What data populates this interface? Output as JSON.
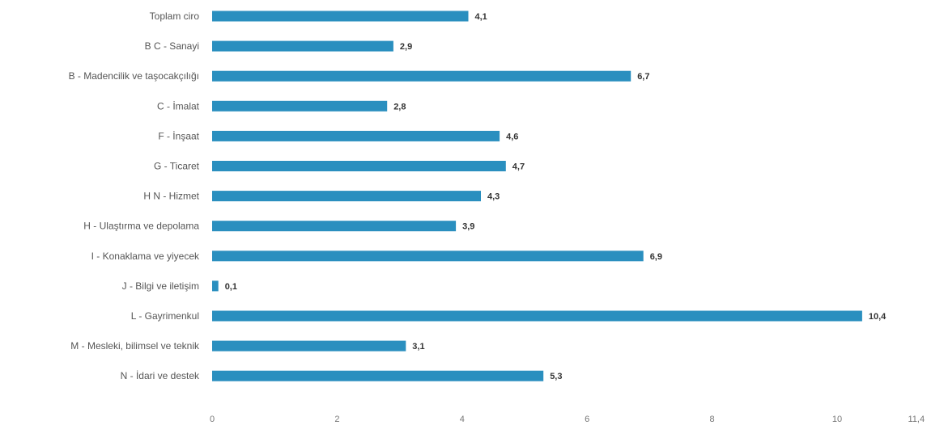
{
  "chart_data": {
    "type": "bar",
    "orientation": "horizontal",
    "categories": [
      "Toplam ciro",
      "B C - Sanayi",
      "B - Madencilik ve taşocakçılığı",
      "C - İmalat",
      "F - İnşaat",
      "G - Ticaret",
      "H N - Hizmet",
      "H - Ulaştırma ve depolama",
      "I - Konaklama ve yiyecek",
      "J - Bilgi ve iletişim",
      "L - Gayrimenkul",
      "M - Mesleki, bilimsel ve teknik",
      "N - İdari ve destek"
    ],
    "values": [
      4.1,
      2.9,
      6.7,
      2.8,
      4.6,
      4.7,
      4.3,
      3.9,
      6.9,
      0.1,
      10.4,
      3.1,
      5.3
    ],
    "value_labels": [
      "4,1",
      "2,9",
      "6,7",
      "2,8",
      "4,6",
      "4,7",
      "4,3",
      "3,9",
      "6,9",
      "0,1",
      "10,4",
      "3,1",
      "5,3"
    ],
    "xlim": [
      0,
      11.4
    ],
    "xticks": [
      0,
      2,
      4,
      6,
      8,
      10,
      11.4
    ],
    "xtick_labels": [
      "0",
      "2",
      "4",
      "6",
      "8",
      "10",
      "11,4"
    ],
    "bar_color": "#2a8fbf",
    "grid": false,
    "legend": "none"
  }
}
